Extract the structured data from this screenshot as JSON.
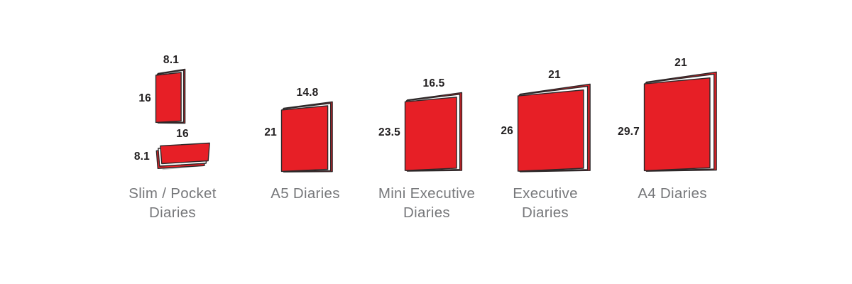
{
  "colors": {
    "book_red": "#e71f26",
    "pages_white": "#ffffff",
    "outline": "#2d2829",
    "shadow_gray": "#c6c7c9",
    "caption_gray": "#77787b",
    "number_dark": "#232021"
  },
  "groups": [
    {
      "id": "slim-pocket",
      "label_lines": [
        "Slim / Pocket",
        "Diaries"
      ],
      "books": [
        {
          "orientation": "standing",
          "width_label": "8.1",
          "height_label": "16",
          "width_cm": 8.1,
          "height_cm": 16
        },
        {
          "orientation": "lying",
          "width_label": "16",
          "height_label": "8.1",
          "width_cm": 16,
          "height_cm": 8.1
        }
      ]
    },
    {
      "id": "a5",
      "label_lines": [
        "A5 Diaries"
      ],
      "books": [
        {
          "orientation": "standing",
          "width_label": "14.8",
          "height_label": "21",
          "width_cm": 14.8,
          "height_cm": 21
        }
      ]
    },
    {
      "id": "mini-executive",
      "label_lines": [
        "Mini Executive",
        "Diaries"
      ],
      "books": [
        {
          "orientation": "standing",
          "width_label": "16.5",
          "height_label": "23.5",
          "width_cm": 16.5,
          "height_cm": 23.5
        }
      ]
    },
    {
      "id": "executive",
      "label_lines": [
        "Executive",
        "Diaries"
      ],
      "books": [
        {
          "orientation": "standing",
          "width_label": "21",
          "height_label": "26",
          "width_cm": 21,
          "height_cm": 26
        }
      ]
    },
    {
      "id": "a4",
      "label_lines": [
        "A4 Diaries"
      ],
      "books": [
        {
          "orientation": "standing",
          "width_label": "21",
          "height_label": "29.7",
          "width_cm": 21,
          "height_cm": 29.7
        }
      ]
    }
  ]
}
